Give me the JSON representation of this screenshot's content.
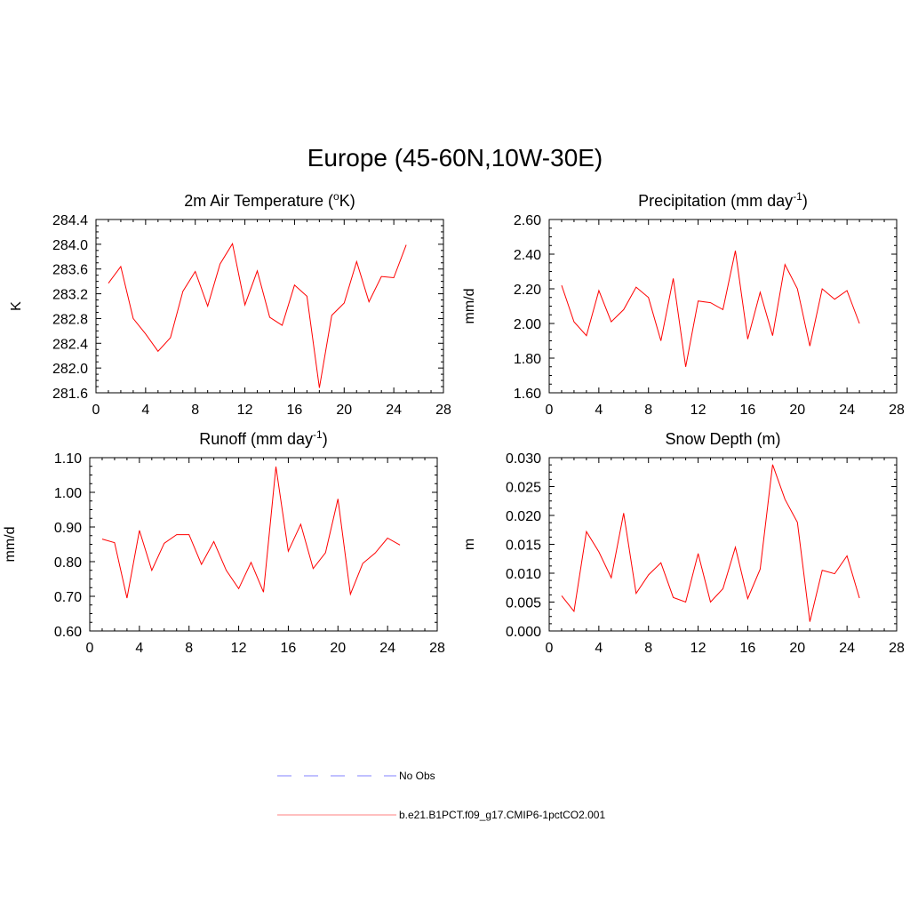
{
  "figure": {
    "title": "Europe (45-60N,10W-30E)",
    "legend": {
      "items": [
        {
          "label": "No Obs",
          "color": "#8080ff",
          "dash": true
        },
        {
          "label": "b.e21.B1PCT.f09_g17.CMIP6-1pctCO2.001",
          "color": "#ff0000",
          "dash": false
        }
      ]
    }
  },
  "chart_data": [
    {
      "type": "line",
      "title": "2m Air Temperature (",
      "title_sup": "o",
      "title_suffix": "K)",
      "ylabel": "K",
      "xlim": [
        0,
        28
      ],
      "ylim": [
        281.6,
        284.4
      ],
      "xticks": [
        0,
        4,
        8,
        12,
        16,
        20,
        24,
        28
      ],
      "yticks": [
        281.6,
        282.0,
        282.4,
        282.8,
        283.2,
        283.6,
        284.0,
        284.4
      ],
      "ytick_labels": [
        "281.6",
        "282.0",
        "282.4",
        "282.8",
        "283.2",
        "283.6",
        "284.0",
        "284.4"
      ],
      "series": [
        {
          "color": "#ff0000",
          "x": [
            1,
            2,
            3,
            4,
            5,
            6,
            7,
            8,
            9,
            10,
            11,
            12,
            13,
            14,
            15,
            16,
            17,
            18,
            19,
            20,
            21,
            22,
            23,
            24,
            25
          ],
          "y": [
            283.37,
            283.64,
            282.8,
            282.55,
            282.27,
            282.49,
            283.24,
            283.56,
            283.0,
            283.68,
            284.01,
            283.02,
            283.57,
            282.82,
            282.69,
            283.34,
            283.16,
            281.68,
            282.85,
            283.05,
            283.72,
            283.07,
            283.48,
            283.46,
            283.99
          ]
        }
      ]
    },
    {
      "type": "line",
      "title": "Precipitation (mm day",
      "title_sup": "-1",
      "title_suffix": ")",
      "ylabel": "mm/d",
      "xlim": [
        0,
        28
      ],
      "ylim": [
        1.6,
        2.6
      ],
      "xticks": [
        0,
        4,
        8,
        12,
        16,
        20,
        24,
        28
      ],
      "yticks": [
        1.6,
        1.8,
        2.0,
        2.2,
        2.4,
        2.6
      ],
      "ytick_labels": [
        "1.60",
        "1.80",
        "2.00",
        "2.20",
        "2.40",
        "2.60"
      ],
      "series": [
        {
          "color": "#ff0000",
          "x": [
            1,
            2,
            3,
            4,
            5,
            6,
            7,
            8,
            9,
            10,
            11,
            12,
            13,
            14,
            15,
            16,
            17,
            18,
            19,
            20,
            21,
            22,
            23,
            24,
            25
          ],
          "y": [
            2.22,
            2.01,
            1.93,
            2.19,
            2.01,
            2.08,
            2.21,
            2.15,
            1.9,
            2.26,
            1.75,
            2.13,
            2.12,
            2.08,
            2.42,
            1.91,
            2.18,
            1.93,
            2.34,
            2.2,
            1.87,
            2.2,
            2.14,
            2.19,
            2.0
          ]
        }
      ]
    },
    {
      "type": "line",
      "title": "Runoff (mm day",
      "title_sup": "-1",
      "title_suffix": ")",
      "ylabel": "mm/d",
      "xlim": [
        0,
        28
      ],
      "ylim": [
        0.6,
        1.1
      ],
      "xticks": [
        0,
        4,
        8,
        12,
        16,
        20,
        24,
        28
      ],
      "yticks": [
        0.6,
        0.7,
        0.8,
        0.9,
        1.0,
        1.1
      ],
      "ytick_labels": [
        "0.60",
        "0.70",
        "0.80",
        "0.90",
        "1.00",
        "1.10"
      ],
      "series": [
        {
          "color": "#ff0000",
          "x": [
            1,
            2,
            3,
            4,
            5,
            6,
            7,
            8,
            9,
            10,
            11,
            12,
            13,
            14,
            15,
            16,
            17,
            18,
            19,
            20,
            21,
            22,
            23,
            24,
            25
          ],
          "y": [
            0.865,
            0.855,
            0.695,
            0.89,
            0.775,
            0.853,
            0.878,
            0.878,
            0.792,
            0.858,
            0.775,
            0.722,
            0.798,
            0.712,
            1.074,
            0.83,
            0.908,
            0.78,
            0.826,
            0.981,
            0.706,
            0.795,
            0.825,
            0.868,
            0.848
          ]
        }
      ]
    },
    {
      "type": "line",
      "title": "Snow Depth (m)",
      "title_sup": "",
      "title_suffix": "",
      "ylabel": "m",
      "xlim": [
        0,
        28
      ],
      "ylim": [
        0,
        0.03
      ],
      "xticks": [
        0,
        4,
        8,
        12,
        16,
        20,
        24,
        28
      ],
      "yticks": [
        0,
        0.005,
        0.01,
        0.015,
        0.02,
        0.025,
        0.03
      ],
      "ytick_labels": [
        "0.000",
        "0.005",
        "0.010",
        "0.015",
        "0.020",
        "0.025",
        "0.030"
      ],
      "series": [
        {
          "color": "#ff0000",
          "x": [
            1,
            2,
            3,
            4,
            5,
            6,
            7,
            8,
            9,
            10,
            11,
            12,
            13,
            14,
            15,
            16,
            17,
            18,
            19,
            20,
            21,
            22,
            23,
            24,
            25
          ],
          "y": [
            0.0061,
            0.0034,
            0.0172,
            0.0137,
            0.0092,
            0.0204,
            0.0065,
            0.0097,
            0.0118,
            0.0058,
            0.005,
            0.0134,
            0.005,
            0.0073,
            0.0145,
            0.0056,
            0.0107,
            0.0288,
            0.0228,
            0.0188,
            0.0016,
            0.0105,
            0.0099,
            0.013,
            0.0057
          ]
        }
      ]
    }
  ]
}
